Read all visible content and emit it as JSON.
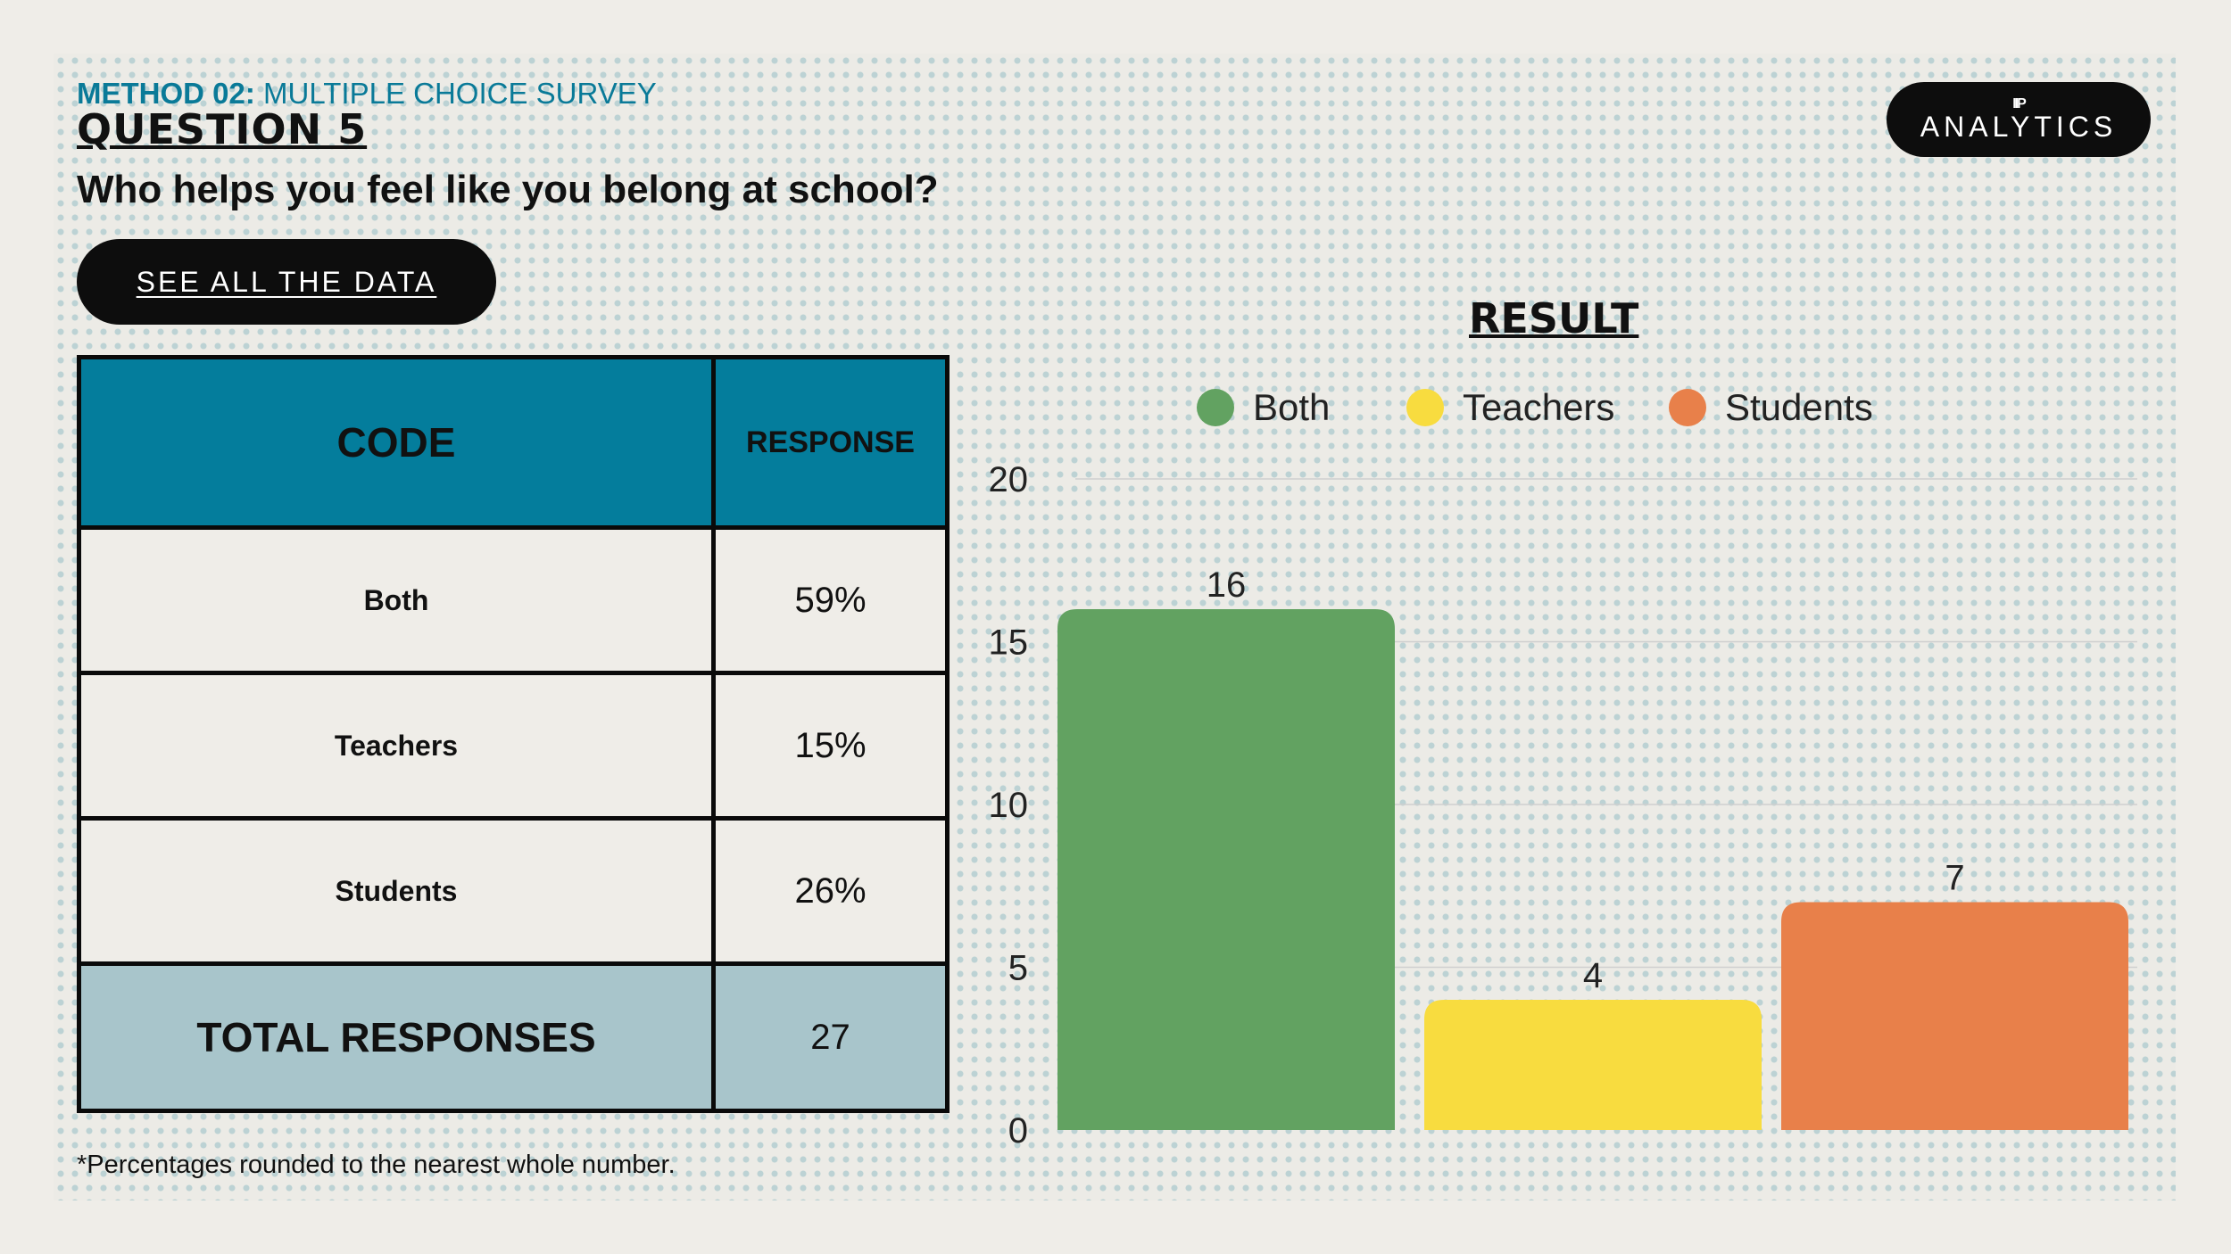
{
  "header": {
    "method_label": "METHOD 02:",
    "survey_type": "MULTIPLE CHOICE SURVEY",
    "question_number": "QUESTION 5",
    "question_text": "Who helps you feel like you belong at school?"
  },
  "buttons": {
    "see_all": "SEE ALL THE DATA"
  },
  "logo": {
    "text": "ANALYTICS",
    "mark": "IIP"
  },
  "table": {
    "headers": {
      "code": "CODE",
      "response": "RESPONSE"
    },
    "rows": [
      {
        "code": "Both",
        "response": "59%"
      },
      {
        "code": "Teachers",
        "response": "15%"
      },
      {
        "code": "Students",
        "response": "26%"
      }
    ],
    "total": {
      "label": "TOTAL RESPONSES",
      "value": "27"
    }
  },
  "footnote": "*Percentages rounded to the nearest whole number.",
  "chart_data": {
    "type": "bar",
    "title": "RESULT",
    "categories": [
      "Both",
      "Teachers",
      "Students"
    ],
    "values": [
      16,
      4,
      7
    ],
    "colors": [
      "#62a261",
      "#f8dc3f",
      "#e8804a"
    ],
    "legend": [
      "Both",
      "Teachers",
      "Students"
    ],
    "legend_position": "top",
    "ylim": [
      0,
      20
    ],
    "yticks": [
      0,
      5,
      10,
      15,
      20
    ],
    "grid": true,
    "data_labels": [
      "16",
      "4",
      "7"
    ]
  },
  "colors": {
    "accent": "#047d9c",
    "total_row": "#a8c5cb",
    "dark": "#0d0d0d"
  }
}
